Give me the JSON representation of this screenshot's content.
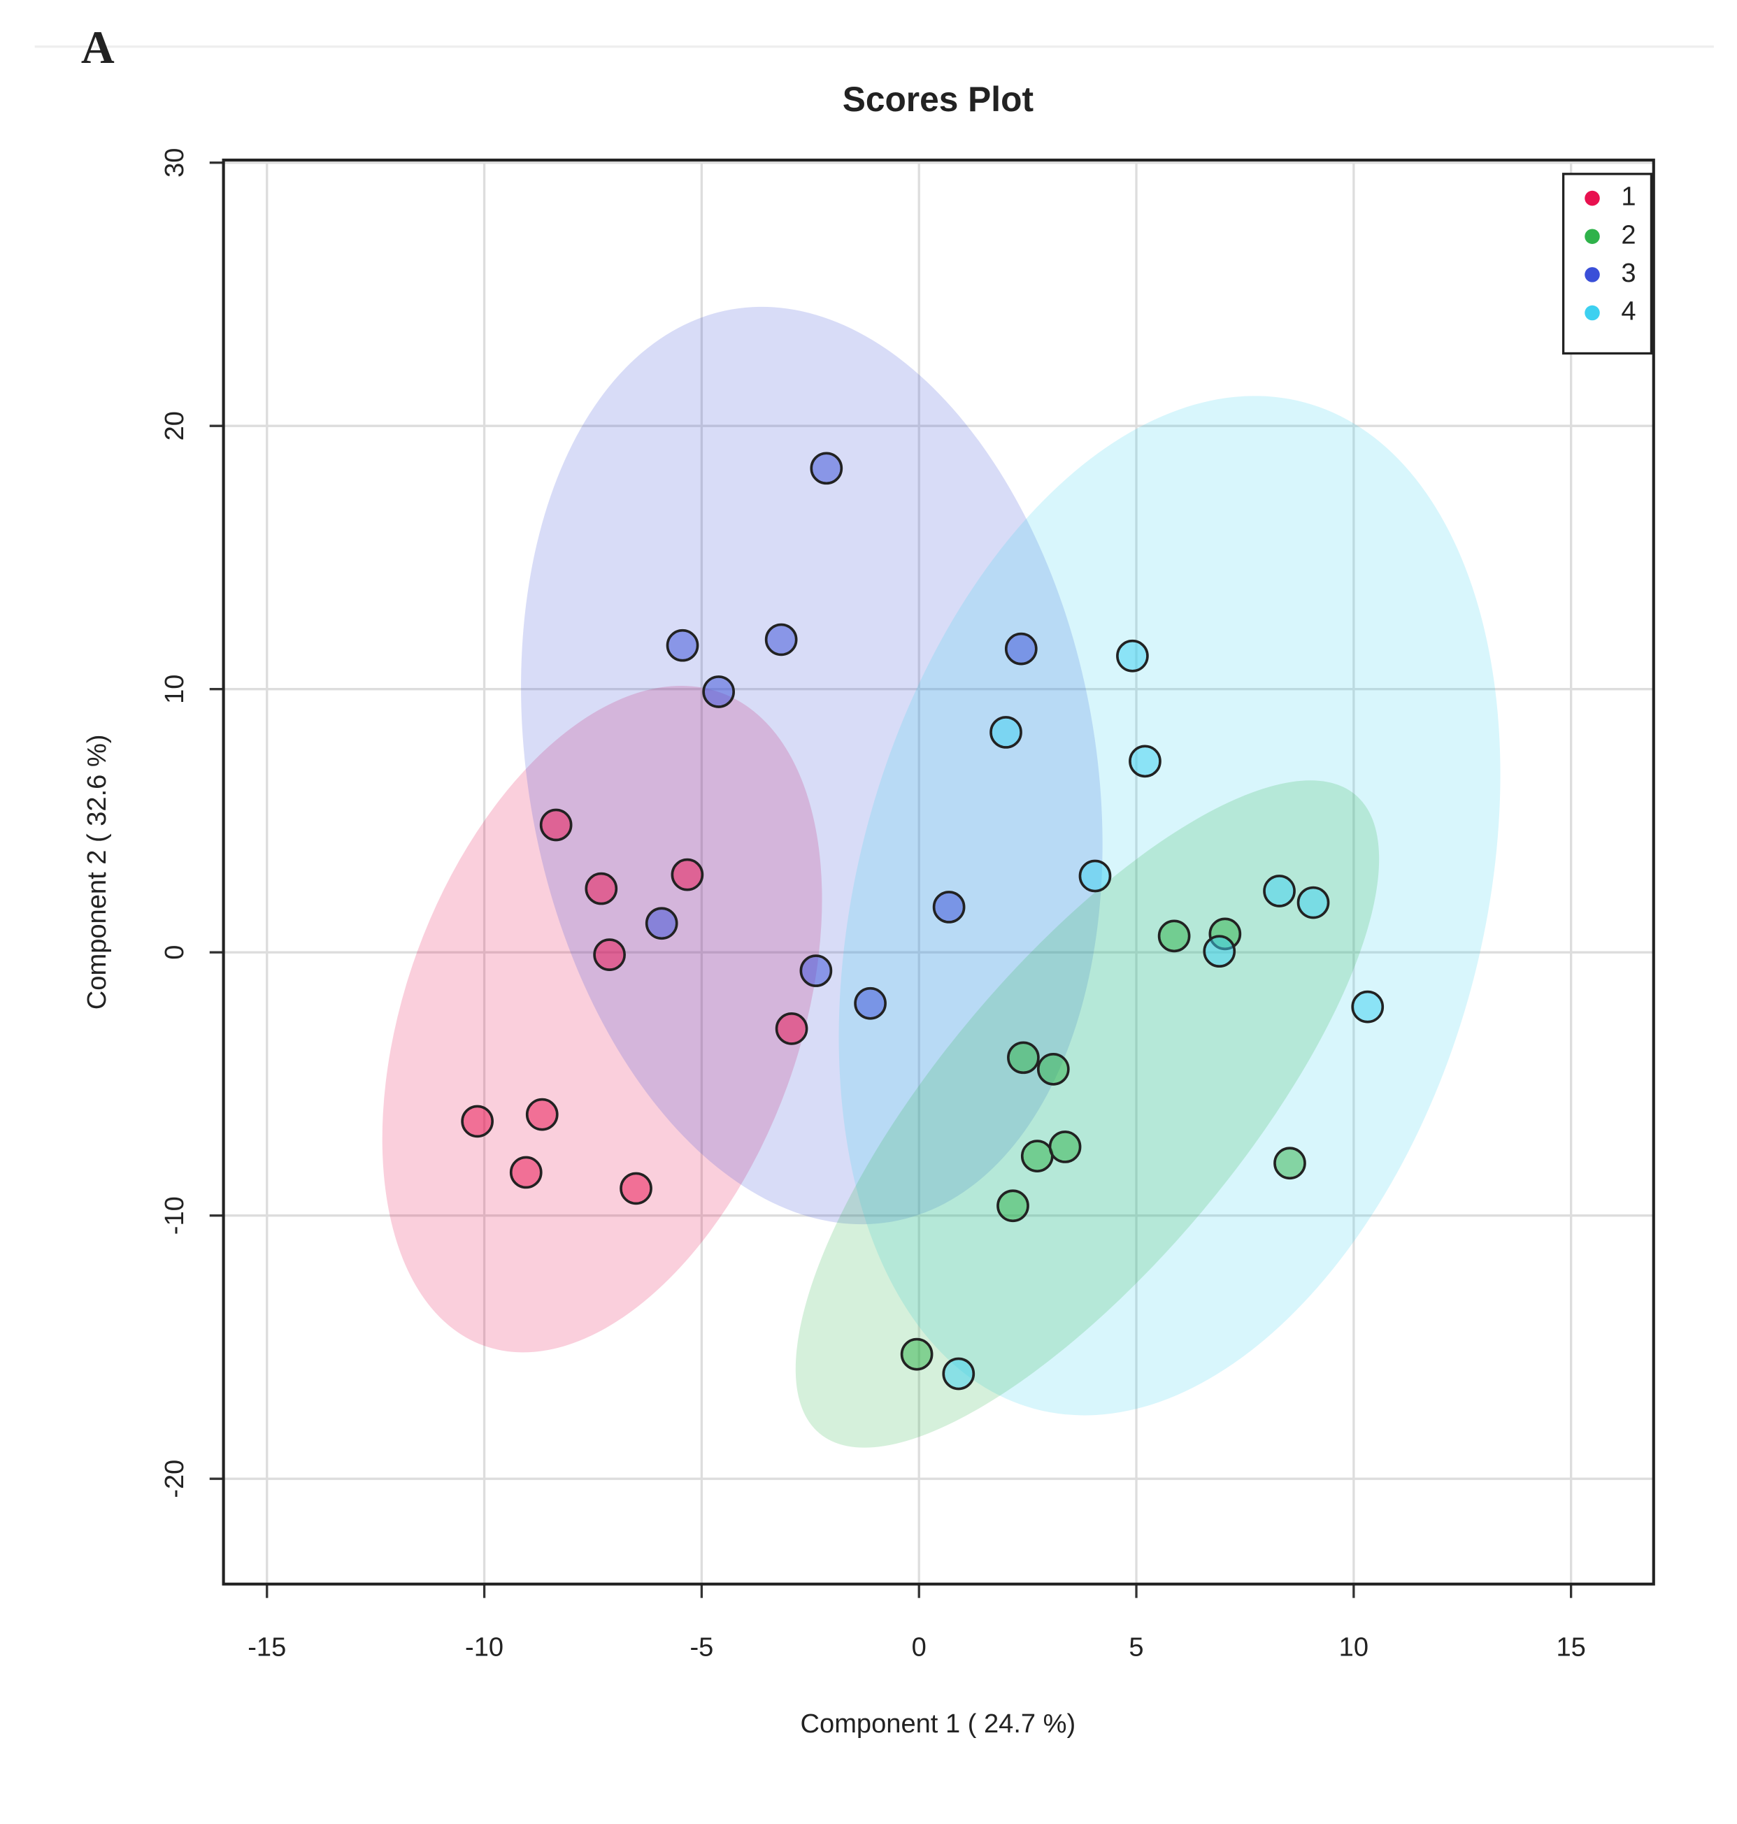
{
  "panel_label": "A",
  "chart_data": {
    "type": "scatter",
    "title": "Scores Plot",
    "xlabel": "Component 1 ( 24.7 %)",
    "ylabel": "Component 2 ( 32.6 %)",
    "xlim": [
      -16,
      16.9
    ],
    "ylim": [
      -24,
      30.1
    ],
    "xticks": [
      -15,
      -10,
      -5,
      0,
      5,
      10,
      15
    ],
    "yticks": [
      -20,
      -10,
      0,
      10,
      20,
      30
    ],
    "grid": true,
    "legend": "upper right",
    "series": [
      {
        "name": "1",
        "color": "#e8114f",
        "x": [
          -8.35,
          -7.31,
          -5.33,
          -7.12,
          -2.93,
          -10.16,
          -8.67,
          -9.04,
          -6.51
        ],
        "y": [
          4.84,
          2.42,
          2.95,
          -0.09,
          -2.9,
          -6.42,
          -6.16,
          -8.36,
          -8.97
        ]
      },
      {
        "name": "2",
        "color": "#2fb24a",
        "x": [
          5.87,
          7.04,
          2.4,
          3.09,
          2.72,
          3.36,
          8.53,
          2.16,
          -0.05
        ],
        "y": [
          0.62,
          0.7,
          -4.0,
          -4.44,
          -7.74,
          -7.39,
          -8.01,
          -9.63,
          -15.27
        ]
      },
      {
        "name": "3",
        "color": "#3a4fd8",
        "x": [
          -2.13,
          -5.44,
          -3.17,
          -4.61,
          2.35,
          -5.92,
          0.69,
          -2.37,
          -1.12
        ],
        "y": [
          18.39,
          11.66,
          11.88,
          9.9,
          11.53,
          1.1,
          1.72,
          -0.7,
          -1.94
        ]
      },
      {
        "name": "4",
        "color": "#3dd0f0",
        "x": [
          4.91,
          2.0,
          5.2,
          4.05,
          8.29,
          9.07,
          6.91,
          10.32,
          0.91
        ],
        "y": [
          11.26,
          8.36,
          7.26,
          2.9,
          2.33,
          1.89,
          0.04,
          -2.07,
          -16.01
        ]
      }
    ]
  }
}
